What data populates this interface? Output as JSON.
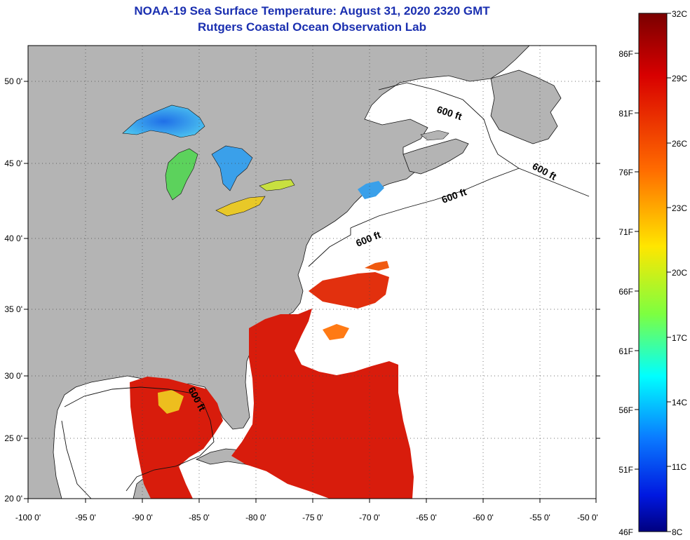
{
  "header": {
    "title": "NOAA-19 Sea Surface Temperature:  August 31, 2020 2320 GMT",
    "subtitle": "Rutgers Coastal Ocean Observation Lab"
  },
  "map": {
    "x_ticks": [
      "-100 0'",
      "-95 0'",
      "-90 0'",
      "-85 0'",
      "-80 0'",
      "-75 0'",
      "-70 0'",
      "-65 0'",
      "-60 0'",
      "-55 0'",
      "-50 0'"
    ],
    "y_ticks": [
      "50 0'",
      "45 0'",
      "40 0'",
      "35 0'",
      "30 0'",
      "25 0'",
      "20 0'"
    ],
    "contour_labels": [
      "600 ft",
      "600 ft",
      "600 ft",
      "600 ft",
      "600 ft"
    ],
    "colors": {
      "land": "#b4b4b4",
      "cloud_or_nodata": "#ffffff",
      "warm_water": "#d81c0c",
      "lake_water": "#2a8fe0"
    }
  },
  "colorbar": {
    "celsius_labels": [
      "32C",
      "29C",
      "26C",
      "23C",
      "20C",
      "17C",
      "14C",
      "11C",
      "8C"
    ],
    "fahrenheit_labels": [
      "86F",
      "81F",
      "76F",
      "71F",
      "66F",
      "61F",
      "56F",
      "51F",
      "46F"
    ],
    "min_c": 8,
    "max_c": 32
  }
}
